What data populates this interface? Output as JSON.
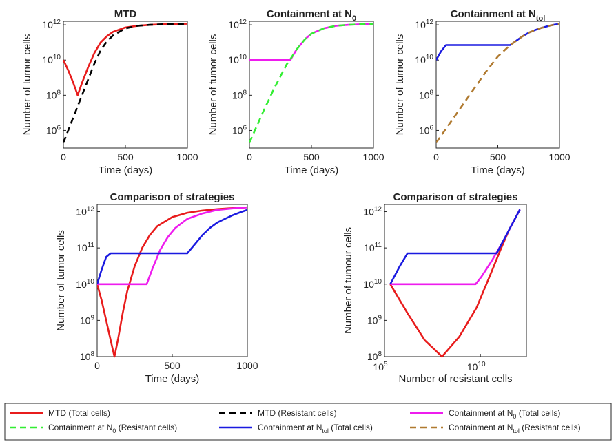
{
  "colors": {
    "mtd_total": "#e81c1c",
    "mtd_resistant": "#000000",
    "n0_total": "#ee1cee",
    "n0_resistant": "#33ee33",
    "ntol_total": "#1a1ae0",
    "ntol_resistant": "#b07a30"
  },
  "chart_data": [
    {
      "type": "line",
      "title": "MTD",
      "xlabel": "Time (days)",
      "ylabel": "Number of tumor cells",
      "x_scale": "linear",
      "y_scale": "log",
      "xlim": [
        0,
        1000
      ],
      "ylim_exp": [
        5,
        12.2
      ],
      "xticks": [
        "0",
        "500",
        "1000"
      ],
      "yticks": [
        "10^6",
        "10^8",
        "10^10",
        "10^12"
      ],
      "series": [
        {
          "name": "MTD (Total cells)",
          "x": [
            0,
            40,
            80,
            115,
            150,
            200,
            250,
            300,
            350,
            400,
            500,
            600,
            700,
            800,
            900,
            1000
          ],
          "log10_y": [
            10.0,
            9.4,
            8.7,
            8.0,
            8.7,
            9.6,
            10.4,
            11.0,
            11.35,
            11.6,
            11.85,
            11.95,
            12.0,
            12.03,
            12.05,
            12.06
          ]
        },
        {
          "name": "MTD (Resistant cells)",
          "x": [
            0,
            50,
            100,
            150,
            200,
            250,
            300,
            350,
            400,
            500,
            600,
            700,
            800,
            900,
            1000
          ],
          "log10_y": [
            5.3,
            6.2,
            7.1,
            8.0,
            8.9,
            9.8,
            10.55,
            11.05,
            11.4,
            11.8,
            11.95,
            12.0,
            12.03,
            12.05,
            12.06
          ],
          "dashed": true
        }
      ]
    },
    {
      "type": "line",
      "title": "Containment at N",
      "title_sub": "0",
      "xlabel": "Time (days)",
      "ylabel": "Number of tumor cells",
      "x_scale": "linear",
      "y_scale": "log",
      "xlim": [
        0,
        1000
      ],
      "ylim_exp": [
        5,
        12.2
      ],
      "xticks": [
        "0",
        "500",
        "1000"
      ],
      "yticks": [
        "10^6",
        "10^8",
        "10^10",
        "10^12"
      ],
      "series": [
        {
          "name": "Containment at N0 (Total cells)",
          "x": [
            0,
            330,
            380,
            450,
            500,
            600,
            700,
            800,
            900,
            1000
          ],
          "log10_y": [
            10.0,
            10.0,
            10.6,
            11.2,
            11.5,
            11.8,
            11.95,
            12.0,
            12.03,
            12.06
          ]
        },
        {
          "name": "Containment at N0 (Resistant cells)",
          "x": [
            0,
            100,
            200,
            300,
            330,
            380,
            450,
            500,
            600,
            700,
            800,
            900,
            1000
          ],
          "log10_y": [
            5.3,
            6.9,
            8.4,
            9.75,
            10.05,
            10.6,
            11.2,
            11.5,
            11.8,
            11.95,
            12.0,
            12.03,
            12.06
          ],
          "dashed": true
        }
      ]
    },
    {
      "type": "line",
      "title": "Containment at N",
      "title_sub": "tol",
      "xlabel": "Time (days)",
      "ylabel": "Number of tumor cells",
      "x_scale": "linear",
      "y_scale": "log",
      "xlim": [
        0,
        1000
      ],
      "ylim_exp": [
        5,
        12.2
      ],
      "xticks": [
        "0",
        "500",
        "1000"
      ],
      "yticks": [
        "10^6",
        "10^8",
        "10^10",
        "10^12"
      ],
      "series": [
        {
          "name": "Containment at Ntol (Total cells)",
          "x": [
            0,
            40,
            80,
            600,
            650,
            700,
            750,
            800,
            850,
            900,
            950,
            1000
          ],
          "log10_y": [
            10.0,
            10.5,
            10.85,
            10.85,
            11.1,
            11.35,
            11.55,
            11.7,
            11.82,
            11.92,
            12.0,
            12.06
          ]
        },
        {
          "name": "Containment at Ntol (Resistant cells)",
          "x": [
            0,
            100,
            200,
            300,
            400,
            500,
            600,
            650,
            700,
            750,
            800,
            850,
            900,
            950,
            1000
          ],
          "log10_y": [
            5.3,
            6.3,
            7.3,
            8.3,
            9.3,
            10.2,
            10.85,
            11.1,
            11.35,
            11.55,
            11.7,
            11.82,
            11.92,
            12.0,
            12.06
          ],
          "dashed": true
        }
      ]
    },
    {
      "type": "line",
      "title": "Comparison of strategies",
      "xlabel": "Time (days)",
      "ylabel": "Number of tumor cells",
      "x_scale": "linear",
      "y_scale": "log",
      "xlim": [
        0,
        1000
      ],
      "ylim_exp": [
        8,
        12.2
      ],
      "xticks": [
        "0",
        "500",
        "1000"
      ],
      "yticks": [
        "10^8",
        "10^9",
        "10^10",
        "10^11",
        "10^12"
      ],
      "series": [
        {
          "name": "MTD (Total cells)",
          "x": [
            0,
            30,
            60,
            90,
            115,
            140,
            170,
            200,
            250,
            300,
            350,
            400,
            500,
            600,
            700,
            800,
            900,
            1000
          ],
          "log10_y": [
            10.0,
            9.55,
            9.0,
            8.45,
            8.0,
            8.5,
            9.2,
            9.8,
            10.5,
            11.0,
            11.35,
            11.6,
            11.85,
            11.97,
            12.03,
            12.07,
            12.1,
            12.12
          ]
        },
        {
          "name": "Containment at N0 (Total cells)",
          "x": [
            0,
            330,
            370,
            420,
            470,
            520,
            600,
            700,
            800,
            900,
            1000
          ],
          "log10_y": [
            10.0,
            10.0,
            10.45,
            10.95,
            11.3,
            11.55,
            11.8,
            11.95,
            12.05,
            12.09,
            12.12
          ]
        },
        {
          "name": "Containment at Ntol (Total cells)",
          "x": [
            0,
            30,
            60,
            90,
            600,
            650,
            700,
            750,
            800,
            850,
            900,
            950,
            1000
          ],
          "log10_y": [
            10.0,
            10.4,
            10.75,
            10.85,
            10.85,
            11.1,
            11.35,
            11.55,
            11.7,
            11.8,
            11.9,
            11.98,
            12.05
          ]
        }
      ]
    },
    {
      "type": "line",
      "title": "Comparison of strategies",
      "xlabel": "Number of resistant cells",
      "ylabel": "Number of tumour cells",
      "x_scale": "log",
      "y_scale": "log",
      "xlim_exp": [
        5,
        12.4
      ],
      "ylim_exp": [
        8,
        12.2
      ],
      "xticks": [
        "10^5",
        "10^10"
      ],
      "yticks": [
        "10^8",
        "10^9",
        "10^10",
        "10^11",
        "10^12"
      ],
      "series": [
        {
          "name": "MTD (Total cells)",
          "log10_x": [
            5.3,
            6.2,
            7.1,
            8.0,
            8.9,
            9.8,
            10.55,
            11.05,
            11.5,
            12.06
          ],
          "log10_y": [
            10.0,
            9.2,
            8.45,
            8.0,
            8.55,
            9.35,
            10.3,
            10.95,
            11.5,
            12.06
          ]
        },
        {
          "name": "Containment at N0 (Total cells)",
          "log10_x": [
            5.3,
            9.75,
            10.05,
            10.6,
            11.2,
            11.6,
            12.06
          ],
          "log10_y": [
            10.0,
            10.0,
            10.2,
            10.65,
            11.2,
            11.6,
            12.06
          ]
        },
        {
          "name": "Containment at Ntol (Total cells)",
          "log10_x": [
            5.3,
            5.8,
            6.2,
            10.85,
            11.1,
            11.5,
            12.06
          ],
          "log10_y": [
            10.0,
            10.5,
            10.85,
            10.85,
            11.1,
            11.5,
            12.06
          ]
        }
      ]
    }
  ],
  "legend": [
    {
      "label": "MTD (Total cells)",
      "color_key": "mtd_total",
      "dashed": false
    },
    {
      "label": "MTD (Resistant cells)",
      "color_key": "mtd_resistant",
      "dashed": true
    },
    {
      "label": "Containment at N",
      "sub": "0",
      "suffix": " (Total cells)",
      "color_key": "n0_total",
      "dashed": false
    },
    {
      "label": "Containment at N",
      "sub": "0",
      "suffix": " (Resistant cells)",
      "color_key": "n0_resistant",
      "dashed": true
    },
    {
      "label": "Containment at N",
      "sub": "tol",
      "suffix": " (Total cells)",
      "color_key": "ntol_total",
      "dashed": false
    },
    {
      "label": "Containment at N",
      "sub": "tol",
      "suffix": " (Resistant cells)",
      "color_key": "ntol_resistant",
      "dashed": true
    }
  ]
}
